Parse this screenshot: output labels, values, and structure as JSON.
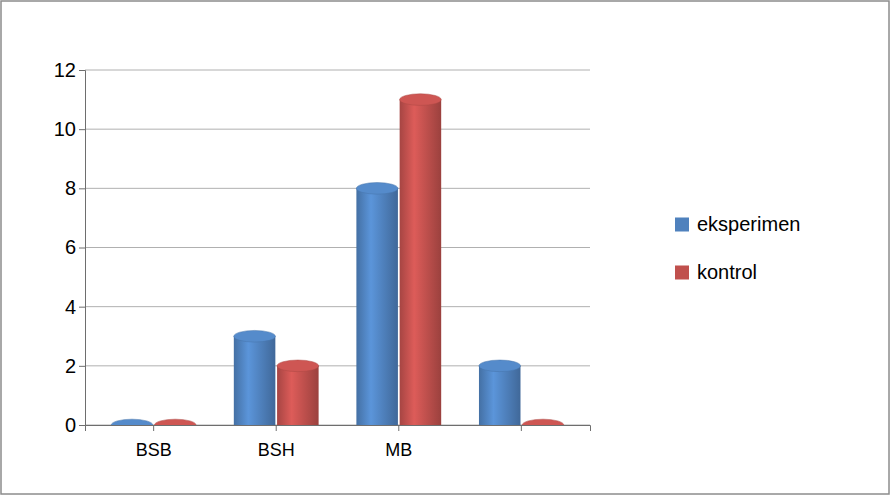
{
  "chart_data": {
    "type": "bar",
    "categories": [
      "BSB",
      "BSH",
      "MB",
      null
    ],
    "series": [
      {
        "name": "eksperimen",
        "color": "#4f81bd",
        "values": [
          0,
          3,
          8,
          2
        ]
      },
      {
        "name": "kontrol",
        "color": "#c0504d",
        "values": [
          0,
          2,
          11,
          0
        ]
      }
    ],
    "ylim": [
      0,
      12
    ],
    "yticks": [
      0,
      2,
      4,
      6,
      8,
      10,
      12
    ],
    "grid": true,
    "legend": "right"
  }
}
